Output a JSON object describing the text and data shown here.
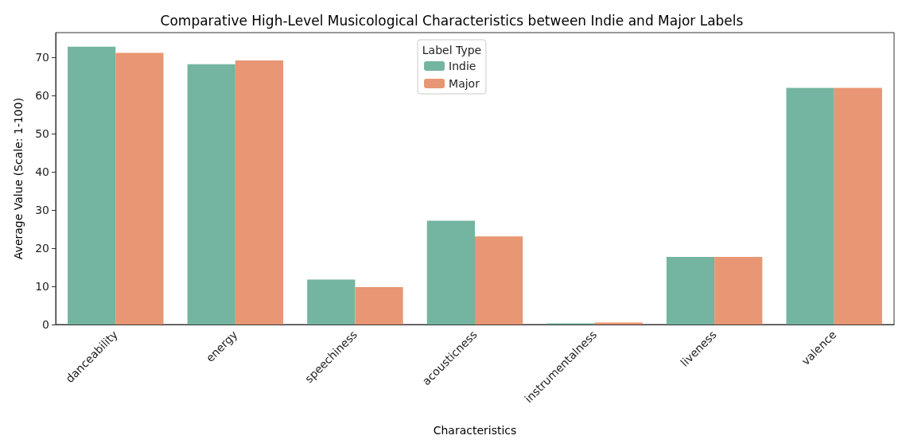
{
  "chart_data": {
    "type": "bar",
    "title": "Comparative High-Level Musicological Characteristics between Indie and Major Labels",
    "xlabel": "Characteristics",
    "ylabel": "Average Value (Scale: 1-100)",
    "legend_title": "Label Type",
    "legend": "top",
    "grid": false,
    "categories": [
      "danceability",
      "energy",
      "speechiness",
      "acousticness",
      "instrumentalness",
      "liveness",
      "valence"
    ],
    "series": [
      {
        "name": "Indie",
        "color": "#73b5a0",
        "values": [
          72.8,
          68.2,
          11.8,
          27.2,
          0.3,
          17.7,
          62.0
        ]
      },
      {
        "name": "Major",
        "color": "#e89673",
        "values": [
          71.2,
          69.2,
          9.8,
          23.1,
          0.5,
          17.7,
          62.0
        ]
      }
    ],
    "ylim": [
      0,
      76.5
    ],
    "yticks": [
      0,
      10,
      20,
      30,
      40,
      50,
      60,
      70
    ]
  }
}
